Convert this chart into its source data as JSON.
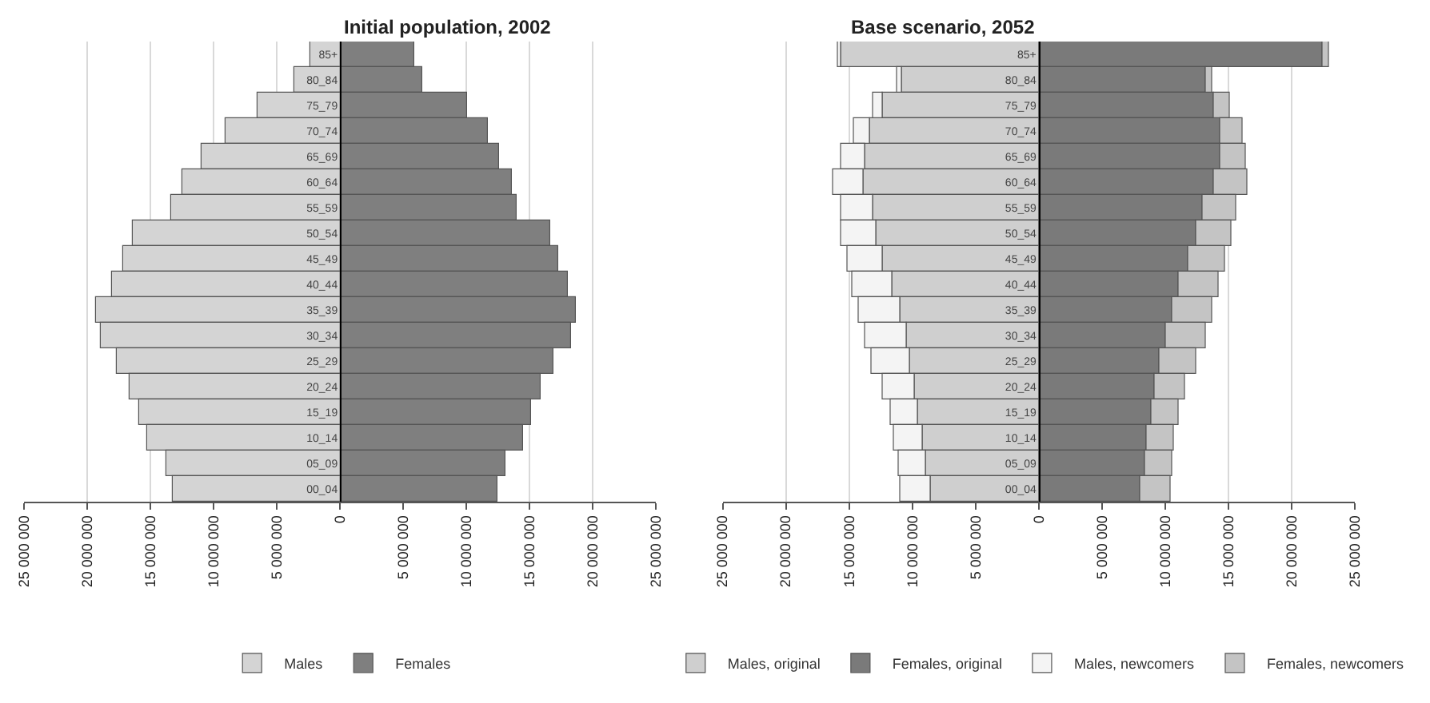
{
  "chart_data": [
    {
      "type": "bar",
      "title": "Initial population, 2002",
      "orientation": "horizontal",
      "stacked": true,
      "categories": [
        "85+",
        "80_84",
        "75_79",
        "70_74",
        "65_69",
        "60_64",
        "55_59",
        "50_54",
        "45_49",
        "40_44",
        "35_39",
        "30_34",
        "25_29",
        "20_24",
        "15_19",
        "10_14",
        "05_09",
        "00_04"
      ],
      "series": [
        {
          "name": "Males",
          "color": "#d4d4d4",
          "values": [
            -2300000,
            -3600000,
            -6500000,
            -9100000,
            -10900000,
            -12500000,
            -13400000,
            -16400000,
            -17100000,
            -18100000,
            -19300000,
            -18900000,
            -17700000,
            -16700000,
            -15900000,
            -15200000,
            -13800000,
            -13200000
          ]
        },
        {
          "name": "Females",
          "color": "#7f7f7f",
          "values": [
            5900000,
            6500000,
            10100000,
            11700000,
            12600000,
            13600000,
            14000000,
            16600000,
            17200000,
            18000000,
            18700000,
            18300000,
            16900000,
            15900000,
            15100000,
            14500000,
            13100000,
            12500000
          ]
        }
      ],
      "xlim": [
        -25000000,
        25000000
      ],
      "xticks": [
        {
          "value": -25000000,
          "label": "25 000 000"
        },
        {
          "value": -20000000,
          "label": "20 000 000"
        },
        {
          "value": -15000000,
          "label": "15 000 000"
        },
        {
          "value": -10000000,
          "label": "10 000 000"
        },
        {
          "value": -5000000,
          "label": "5 000 000"
        },
        0,
        {
          "value": 5000000,
          "label": "5 000 000"
        },
        {
          "value": 10000000,
          "label": "10 000 000"
        },
        {
          "value": 15000000,
          "label": "15 000 000"
        },
        {
          "value": 20000000,
          "label": "20 000 000"
        },
        {
          "value": 25000000,
          "label": "25 000 000"
        }
      ],
      "grid": "x",
      "legend": "bottom"
    },
    {
      "type": "bar",
      "title": "Base scenario, 2052",
      "orientation": "horizontal",
      "stacked": true,
      "categories": [
        "85+",
        "80_84",
        "75_79",
        "70_74",
        "65_69",
        "60_64",
        "55_59",
        "50_54",
        "45_49",
        "40_44",
        "35_39",
        "30_34",
        "25_29",
        "20_24",
        "15_19",
        "10_14",
        "05_09",
        "00_04"
      ],
      "series": [
        {
          "name": "Males, original",
          "color": "#cfcfcf",
          "values": [
            -15700000,
            -10800000,
            -12300000,
            -13300000,
            -13800000,
            -13900000,
            -13100000,
            -12900000,
            -12300000,
            -11600000,
            -11000000,
            -10500000,
            -10200000,
            -9800000,
            -9600000,
            -9200000,
            -8900000,
            -8600000
          ]
        },
        {
          "name": "Females, original",
          "color": "#7a7a7a",
          "values": [
            22400000,
            13200000,
            13900000,
            14300000,
            14300000,
            13900000,
            12900000,
            12400000,
            11800000,
            11000000,
            10500000,
            10000000,
            9600000,
            9200000,
            8900000,
            8500000,
            8400000,
            8000000
          ]
        },
        {
          "name": "Males, newcomers",
          "color": "#f4f4f4",
          "values": [
            -200000,
            -400000,
            -800000,
            -1300000,
            -1800000,
            -2400000,
            -2500000,
            -2700000,
            -2800000,
            -3100000,
            -3300000,
            -3300000,
            -3000000,
            -2500000,
            -2100000,
            -2200000,
            -2200000,
            -2400000
          ]
        },
        {
          "name": "Females, newcomers",
          "color": "#c4c4c4",
          "values": [
            500000,
            500000,
            1200000,
            1800000,
            2100000,
            2600000,
            2700000,
            2800000,
            2900000,
            3200000,
            3200000,
            3200000,
            2900000,
            2400000,
            2100000,
            2200000,
            2200000,
            2400000
          ]
        }
      ],
      "xlim": [
        -25000000,
        25000000
      ],
      "xticks": [
        {
          "value": -25000000,
          "label": "25 000 000"
        },
        {
          "value": -20000000,
          "label": "20 000 000"
        },
        {
          "value": -15000000,
          "label": "15 000 000"
        },
        {
          "value": -10000000,
          "label": "10 000 000"
        },
        {
          "value": -5000000,
          "label": "5 000 000"
        },
        0,
        {
          "value": 5000000,
          "label": "5 000 000"
        },
        {
          "value": 10000000,
          "label": "10 000 000"
        },
        {
          "value": 15000000,
          "label": "15 000 000"
        },
        {
          "value": 20000000,
          "label": "20 000 000"
        },
        {
          "value": 25000000,
          "label": "25 000 000"
        }
      ],
      "grid": "x",
      "legend": "bottom"
    }
  ]
}
